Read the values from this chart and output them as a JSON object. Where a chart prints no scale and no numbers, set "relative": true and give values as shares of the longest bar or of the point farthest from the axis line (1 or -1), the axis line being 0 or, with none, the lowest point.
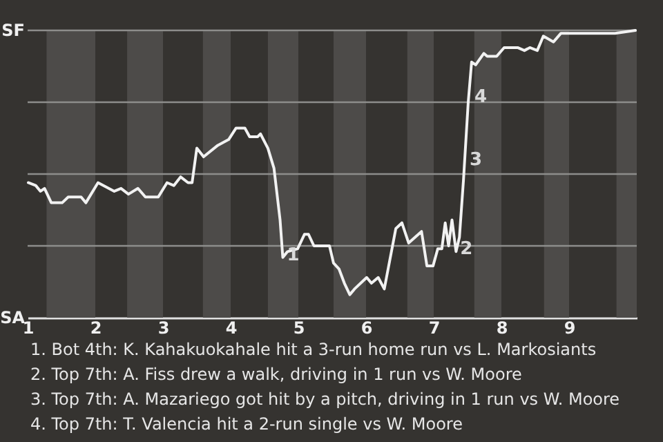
{
  "chart_data": {
    "type": "line",
    "color": "#f2f2f2",
    "relative": true,
    "x": [
      1.01,
      1.12,
      1.19,
      1.25,
      1.35,
      1.51,
      1.6,
      1.79,
      1.86,
      2.04,
      2.28,
      2.38,
      2.49,
      2.63,
      2.74,
      2.93,
      3.06,
      3.16,
      3.26,
      3.37,
      3.43,
      3.5,
      3.6,
      3.81,
      3.97,
      4.08,
      4.21,
      4.28,
      4.4,
      4.44,
      4.55,
      4.64,
      4.73,
      4.77,
      4.84,
      4.99,
      5.09,
      5.15,
      5.23,
      5.46,
      5.52,
      5.6,
      5.68,
      5.76,
      5.83,
      6.01,
      6.08,
      6.18,
      6.27,
      6.44,
      6.53,
      6.63,
      6.82,
      6.9,
      6.99,
      7.06,
      7.12,
      7.17,
      7.22,
      7.27,
      7.33,
      7.38,
      7.44,
      7.51,
      7.56,
      7.62,
      7.74,
      7.79,
      7.93,
      8.04,
      8.24,
      8.34,
      8.42,
      8.53,
      8.62,
      8.77,
      8.88,
      8.99,
      9.68,
      9.98
    ],
    "values": [
      0.47,
      0.46,
      0.44,
      0.45,
      0.4,
      0.4,
      0.42,
      0.42,
      0.4,
      0.47,
      0.44,
      0.45,
      0.43,
      0.45,
      0.42,
      0.42,
      0.47,
      0.46,
      0.49,
      0.47,
      0.47,
      0.59,
      0.56,
      0.6,
      0.62,
      0.66,
      0.66,
      0.63,
      0.63,
      0.64,
      0.59,
      0.52,
      0.34,
      0.21,
      0.23,
      0.24,
      0.29,
      0.29,
      0.25,
      0.25,
      0.19,
      0.17,
      0.12,
      0.08,
      0.1,
      0.14,
      0.12,
      0.14,
      0.1,
      0.31,
      0.33,
      0.26,
      0.3,
      0.18,
      0.18,
      0.24,
      0.24,
      0.33,
      0.25,
      0.34,
      0.23,
      0.28,
      0.48,
      0.75,
      0.89,
      0.88,
      0.92,
      0.91,
      0.91,
      0.94,
      0.94,
      0.93,
      0.94,
      0.93,
      0.98,
      0.96,
      0.99,
      0.99,
      0.99,
      1
    ],
    "xlim": [
      1,
      10
    ],
    "xticks": [
      1,
      2,
      3,
      4,
      5,
      6,
      7,
      8,
      9
    ],
    "grid": "y",
    "bands": [
      {
        "axis": "x",
        "from": 1.28,
        "to": 2,
        "color": "#4d4b49"
      },
      {
        "axis": "x",
        "from": 2.47,
        "to": 3,
        "color": "#4d4b49"
      },
      {
        "axis": "x",
        "from": 3.59,
        "to": 4,
        "color": "#4d4b49"
      },
      {
        "axis": "x",
        "from": 4.55,
        "to": 5,
        "color": "#4d4b49"
      },
      {
        "axis": "x",
        "from": 5.52,
        "to": 6,
        "color": "#4d4b49"
      },
      {
        "axis": "x",
        "from": 6.61,
        "to": 7,
        "color": "#4d4b49"
      },
      {
        "axis": "x",
        "from": 7.6,
        "to": 8,
        "color": "#4d4b49"
      },
      {
        "axis": "x",
        "from": 8.63,
        "to": 9,
        "color": "#4d4b49"
      },
      {
        "axis": "x",
        "from": 9.7,
        "to": 10,
        "color": "#4d4b49"
      }
    ],
    "annotations": [
      "SF",
      "SA",
      {
        "text": "1",
        "x": 4.77,
        "y": 0.21
      },
      {
        "text": "2",
        "x": 7.33,
        "y": 0.23
      },
      {
        "text": "3",
        "x": 7.47,
        "y": 0.54
      },
      {
        "text": "4",
        "x": 7.54,
        "y": 0.76
      },
      "1. Bot 4th: K. Kahakuokahale hit a 3-run home run vs L. Markosiants",
      "2. Top 7th: A. Fiss drew a walk, driving in 1 run vs W. Moore",
      "3. Top 7th: A. Mazariego got hit by a pitch, driving in 1 run vs W. Moore",
      "4. Top 7th: T. Valencia hit a 2-run single vs W. Moore"
    ]
  }
}
